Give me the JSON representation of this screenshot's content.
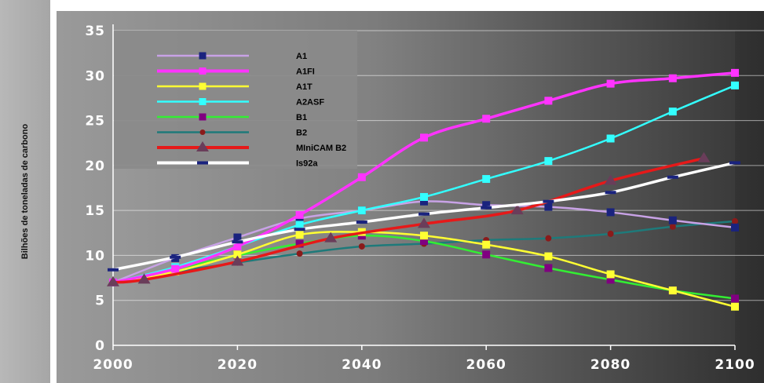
{
  "chart_data": {
    "type": "line",
    "title": "",
    "xlabel": "",
    "ylabel": "Bilhões de toneladas de carbono",
    "xlim": [
      2000,
      2100
    ],
    "ylim": [
      0,
      35
    ],
    "x_ticks": [
      "2000",
      "2020",
      "2040",
      "2060",
      "2080",
      "2100"
    ],
    "y_ticks": [
      "0",
      "5",
      "10",
      "15",
      "20",
      "25",
      "30",
      "35"
    ],
    "grid": "horizontal",
    "legend_position": "top-left",
    "series": [
      {
        "name": "A1",
        "color": "#c8a2e6",
        "marker": "square",
        "marker_color": "#1a237e",
        "x": [
          2000,
          2010,
          2020,
          2030,
          2040,
          2050,
          2060,
          2070,
          2080,
          2090,
          2100
        ],
        "y": [
          7.0,
          9.7,
          12.0,
          14.1,
          15.0,
          16.0,
          15.6,
          15.4,
          14.8,
          13.9,
          13.1
        ]
      },
      {
        "name": "A1FI",
        "color": "#ff33ff",
        "marker": "square",
        "marker_color": "#ff33ff",
        "x": [
          2000,
          2010,
          2020,
          2030,
          2040,
          2050,
          2060,
          2070,
          2080,
          2090,
          2100
        ],
        "y": [
          7.0,
          8.5,
          11.0,
          14.5,
          18.7,
          23.1,
          25.2,
          27.2,
          29.1,
          29.7,
          30.3
        ]
      },
      {
        "name": "A1T",
        "color": "#ffff33",
        "marker": "square",
        "marker_color": "#ffff33",
        "x": [
          2000,
          2010,
          2020,
          2030,
          2040,
          2050,
          2060,
          2070,
          2080,
          2090,
          2100
        ],
        "y": [
          7.0,
          8.2,
          10.1,
          12.3,
          12.6,
          12.2,
          11.2,
          9.9,
          7.9,
          6.1,
          4.3
        ]
      },
      {
        "name": "A2ASF",
        "color": "#33ffff",
        "marker": "square",
        "marker_color": "#33ffff",
        "x": [
          2000,
          2010,
          2020,
          2030,
          2040,
          2050,
          2060,
          2070,
          2080,
          2090,
          2100
        ],
        "y": [
          7.0,
          8.7,
          11.0,
          13.4,
          15.0,
          16.5,
          18.5,
          20.5,
          23.0,
          26.0,
          28.9
        ]
      },
      {
        "name": "B1",
        "color": "#33ee33",
        "marker": "square",
        "marker_color": "#800080",
        "x": [
          2000,
          2010,
          2020,
          2030,
          2040,
          2050,
          2060,
          2070,
          2080,
          2090,
          2100
        ],
        "y": [
          7.0,
          8.5,
          10.0,
          11.3,
          12.2,
          11.6,
          10.1,
          8.6,
          7.3,
          6.1,
          5.2
        ]
      },
      {
        "name": "B2",
        "color": "#1e7a7a",
        "marker": "circle",
        "marker_color": "#8b1a1a",
        "x": [
          2000,
          2010,
          2020,
          2030,
          2040,
          2050,
          2060,
          2070,
          2080,
          2090,
          2100
        ],
        "y": [
          7.0,
          8.2,
          9.2,
          10.2,
          11.0,
          11.3,
          11.7,
          11.9,
          12.4,
          13.2,
          13.8
        ]
      },
      {
        "name": "MIniCAM B2",
        "color": "#e61919",
        "marker": "triangle",
        "marker_color": "#6a3d5a",
        "x": [
          2000,
          2005,
          2020,
          2035,
          2050,
          2065,
          2080,
          2095
        ],
        "y": [
          7.0,
          7.3,
          9.3,
          11.9,
          13.5,
          15.0,
          18.3,
          20.8
        ]
      },
      {
        "name": "Is92a",
        "color": "#ffffff",
        "marker": "dash",
        "marker_color": "#1a237e",
        "x": [
          2000,
          2010,
          2020,
          2030,
          2040,
          2050,
          2060,
          2070,
          2080,
          2090,
          2100
        ],
        "y": [
          8.4,
          9.8,
          11.5,
          12.9,
          13.7,
          14.6,
          15.3,
          16.0,
          17.0,
          18.7,
          20.3
        ]
      }
    ]
  }
}
